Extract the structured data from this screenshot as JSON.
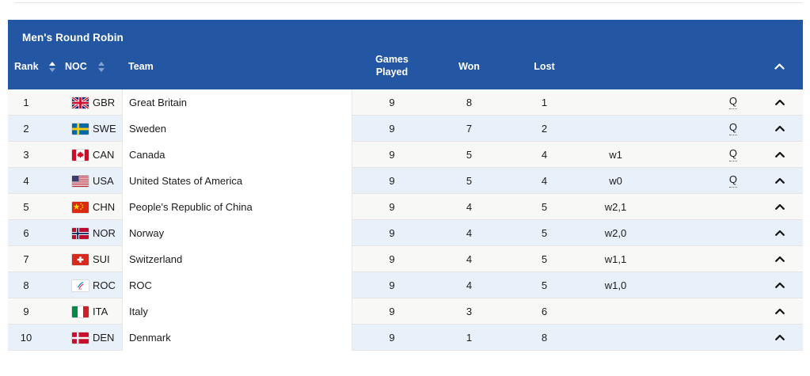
{
  "table": {
    "title": "Men's Round Robin",
    "columns": {
      "rank": "Rank",
      "noc": "NOC",
      "team": "Team",
      "games_played": "Games\nPlayed",
      "won": "Won",
      "lost": "Lost"
    },
    "sort": {
      "active_column": "rank",
      "direction": "asc"
    },
    "qualified_label": "Q",
    "colors": {
      "header_bg": "#2357A4",
      "row_bg": "#F8F8F6",
      "row_alt_bg": "#E8F1FA",
      "row_divider": "#E4E4E2",
      "text": "#1B1B1B"
    },
    "icons": {
      "sort": "sort-arrows-icon",
      "collapse": "chevron-up-icon"
    },
    "rows": [
      {
        "rank": "1",
        "noc": "GBR",
        "flag_icon": "flag-gbr",
        "team": "Great Britain",
        "games_played": "9",
        "won": "8",
        "lost": "1",
        "tiebreak": "",
        "qualified": true
      },
      {
        "rank": "2",
        "noc": "SWE",
        "flag_icon": "flag-swe",
        "team": "Sweden",
        "games_played": "9",
        "won": "7",
        "lost": "2",
        "tiebreak": "",
        "qualified": true
      },
      {
        "rank": "3",
        "noc": "CAN",
        "flag_icon": "flag-can",
        "team": "Canada",
        "games_played": "9",
        "won": "5",
        "lost": "4",
        "tiebreak": "w1",
        "qualified": true
      },
      {
        "rank": "4",
        "noc": "USA",
        "flag_icon": "flag-usa",
        "team": "United States of America",
        "games_played": "9",
        "won": "5",
        "lost": "4",
        "tiebreak": "w0",
        "qualified": true
      },
      {
        "rank": "5",
        "noc": "CHN",
        "flag_icon": "flag-chn",
        "team": "People's Republic of China",
        "games_played": "9",
        "won": "4",
        "lost": "5",
        "tiebreak": "w2,1",
        "qualified": false
      },
      {
        "rank": "6",
        "noc": "NOR",
        "flag_icon": "flag-nor",
        "team": "Norway",
        "games_played": "9",
        "won": "4",
        "lost": "5",
        "tiebreak": "w2,0",
        "qualified": false
      },
      {
        "rank": "7",
        "noc": "SUI",
        "flag_icon": "flag-sui",
        "team": "Switzerland",
        "games_played": "9",
        "won": "4",
        "lost": "5",
        "tiebreak": "w1,1",
        "qualified": false
      },
      {
        "rank": "8",
        "noc": "ROC",
        "flag_icon": "flag-roc",
        "team": "ROC",
        "games_played": "9",
        "won": "4",
        "lost": "5",
        "tiebreak": "w1,0",
        "qualified": false
      },
      {
        "rank": "9",
        "noc": "ITA",
        "flag_icon": "flag-ita",
        "team": "Italy",
        "games_played": "9",
        "won": "3",
        "lost": "6",
        "tiebreak": "",
        "qualified": false
      },
      {
        "rank": "10",
        "noc": "DEN",
        "flag_icon": "flag-den",
        "team": "Denmark",
        "games_played": "9",
        "won": "1",
        "lost": "8",
        "tiebreak": "",
        "qualified": false
      }
    ]
  }
}
